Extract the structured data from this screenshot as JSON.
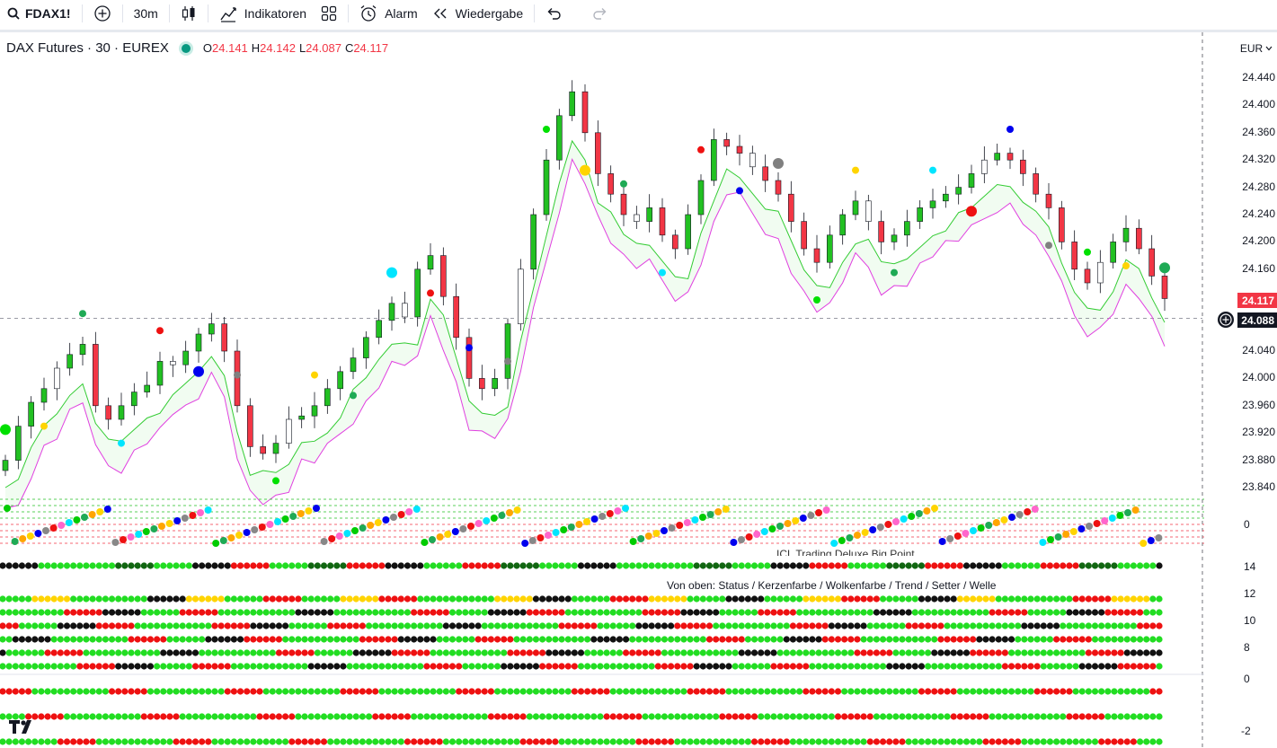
{
  "toolbar": {
    "symbol": "FDAX1!",
    "interval": "30m",
    "indicators_label": "Indikatoren",
    "alarm_label": "Alarm",
    "replay_label": "Wiedergabe"
  },
  "legend": {
    "title": "DAX Futures · 30 · EUREX",
    "o_label": "O",
    "o_value": "24.141",
    "h_label": "H",
    "h_value": "24.142",
    "l_label": "L",
    "l_value": "24.087",
    "c_label": "C",
    "c_value": "24.117"
  },
  "price_axis": {
    "currency": "EUR",
    "ticks": [
      "24.440",
      "24.400",
      "24.360",
      "24.320",
      "24.280",
      "24.240",
      "24.200",
      "24.160",
      "24.040",
      "24.000",
      "23.960",
      "23.920",
      "23.880",
      "23.840"
    ],
    "last_price": "24.117",
    "crosshair_price": "24.088"
  },
  "pane_labels": {
    "dots_zero": "0",
    "p14": "14",
    "p12": "12",
    "p10": "10",
    "p8": "8",
    "lower_zero": "0",
    "lower_m2": "-2"
  },
  "indicator_texts": {
    "big_point_title": "ICL Trading Deluxe Big Point",
    "rows_legend": "Von oben: Status / Kerzenfarbe / Wolkenfarbe / Trend / Setter / Welle"
  },
  "colors": {
    "up": "#22c022",
    "down": "#f23645",
    "neutral": "#ffffff",
    "cloud_line": "#33cc33",
    "base_line": "#e040e0",
    "last_price_bg": "#f23645",
    "crosshair_bg": "#131722"
  },
  "chart_data": {
    "type": "candlestick",
    "symbol": "FDAX1!",
    "interval": "30m",
    "currency": "EUR",
    "ylim": [
      23820,
      24470
    ],
    "last": {
      "open": 24141,
      "high": 24142,
      "low": 24087,
      "close": 24117
    },
    "description_note": "",
    "series_close_path": [
      23880,
      23930,
      23965,
      23985,
      24015,
      24035,
      24050,
      23960,
      23940,
      23960,
      23980,
      23990,
      24025,
      24020,
      24040,
      24065,
      24080,
      24040,
      23960,
      23900,
      23890,
      23905,
      23940,
      23945,
      23960,
      23985,
      24010,
      24030,
      24060,
      24085,
      24110,
      24090,
      24160,
      24180,
      24120,
      24060,
      24000,
      23985,
      24000,
      24080,
      24160,
      24240,
      24320,
      24385,
      24420,
      24360,
      24300,
      24270,
      24240,
      24230,
      24250,
      24210,
      24190,
      24240,
      24290,
      24350,
      24340,
      24330,
      24310,
      24290,
      24270,
      24230,
      24190,
      24170,
      24210,
      24240,
      24260,
      24230,
      24200,
      24210,
      24230,
      24250,
      24260,
      24270,
      24280,
      24300,
      24320,
      24330,
      24320,
      24300,
      24270,
      24250,
      24200,
      24160,
      24140,
      24170,
      24200,
      24220,
      24190,
      24150,
      24117
    ]
  }
}
